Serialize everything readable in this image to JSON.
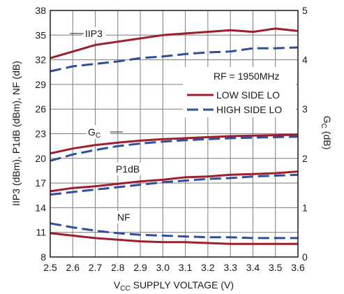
{
  "chart_data": {
    "type": "line",
    "xlabel": "VCC SUPPLY VOLTAGE (V)",
    "xlabel_main": "V",
    "xlabel_sub": "CC",
    "xlabel_rest": " SUPPLY VOLTAGE (V)",
    "ylabel": "IIP3 (dBm), P1dB (dBm), NF (dB)",
    "y2label": "GC (dB)",
    "y2label_main": "G",
    "y2label_sub": "C",
    "y2label_rest": " (dB)",
    "xlim": [
      2.5,
      3.6
    ],
    "ylim": [
      8,
      38
    ],
    "y2lim": [
      0,
      5
    ],
    "x_ticks": [
      "2.5",
      "2.6",
      "2.7",
      "2.8",
      "2.9",
      "3.0",
      "3.1",
      "3.2",
      "3.3",
      "3.4",
      "3.5",
      "3.6"
    ],
    "y_ticks": [
      "8",
      "11",
      "14",
      "17",
      "20",
      "23",
      "26",
      "29",
      "32",
      "35",
      "38"
    ],
    "y2_ticks": [
      "0",
      "1",
      "2",
      "3",
      "4",
      "5"
    ],
    "grid": true,
    "legend": {
      "condition": "RF = 1950MHz",
      "entries": [
        {
          "label": "LOW SIDE LO",
          "color": "#9e1f2c",
          "style": "solid"
        },
        {
          "label": "HIGH SIDE LO",
          "color": "#2f4f9e",
          "style": "dashed"
        }
      ]
    },
    "annotations": [
      {
        "text": "IIP3",
        "series": "IIP3"
      },
      {
        "text_main": "G",
        "text_sub": "C",
        "series": "GC"
      },
      {
        "text": "P1dB",
        "series": "P1dB"
      },
      {
        "text": "NF",
        "series": "NF"
      }
    ],
    "x": [
      2.5,
      2.6,
      2.7,
      2.8,
      2.9,
      3.0,
      3.1,
      3.2,
      3.3,
      3.4,
      3.5,
      3.6
    ],
    "series": [
      {
        "name": "IIP3",
        "lo": "LOW SIDE LO",
        "axis": "left",
        "values": [
          32.2,
          33.0,
          33.8,
          34.2,
          34.6,
          35.0,
          35.2,
          35.4,
          35.6,
          35.4,
          35.8,
          35.5
        ]
      },
      {
        "name": "IIP3",
        "lo": "HIGH SIDE LO",
        "axis": "left",
        "values": [
          30.6,
          31.2,
          31.5,
          31.8,
          32.2,
          32.4,
          32.7,
          32.9,
          33.0,
          33.4,
          33.4,
          33.5
        ]
      },
      {
        "name": "GC",
        "lo": "LOW SIDE LO",
        "axis": "right",
        "values": [
          2.1,
          2.2,
          2.27,
          2.32,
          2.36,
          2.39,
          2.41,
          2.43,
          2.45,
          2.46,
          2.47,
          2.48
        ]
      },
      {
        "name": "GC",
        "lo": "HIGH SIDE LO",
        "axis": "right",
        "values": [
          1.95,
          2.08,
          2.17,
          2.25,
          2.3,
          2.34,
          2.37,
          2.39,
          2.41,
          2.42,
          2.43,
          2.44
        ]
      },
      {
        "name": "P1dB",
        "lo": "LOW SIDE LO",
        "axis": "left",
        "values": [
          16.0,
          16.4,
          16.6,
          16.9,
          17.2,
          17.4,
          17.7,
          17.8,
          18.0,
          18.1,
          18.2,
          18.4
        ]
      },
      {
        "name": "P1dB",
        "lo": "HIGH SIDE LO",
        "axis": "left",
        "values": [
          15.6,
          15.9,
          16.2,
          16.5,
          16.8,
          17.1,
          17.3,
          17.5,
          17.6,
          17.8,
          17.9,
          18.0
        ]
      },
      {
        "name": "NF",
        "lo": "LOW SIDE LO",
        "axis": "left",
        "values": [
          10.9,
          10.6,
          10.3,
          10.1,
          9.9,
          9.8,
          9.8,
          9.7,
          9.6,
          9.6,
          9.6,
          9.6
        ]
      },
      {
        "name": "NF",
        "lo": "HIGH SIDE LO",
        "axis": "left",
        "values": [
          12.1,
          11.6,
          11.2,
          10.9,
          10.7,
          10.6,
          10.5,
          10.4,
          10.4,
          10.3,
          10.3,
          10.3
        ]
      }
    ]
  }
}
